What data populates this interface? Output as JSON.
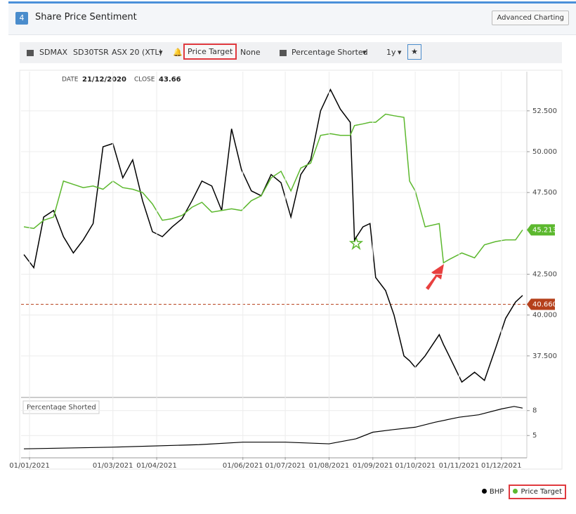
{
  "header": {
    "badge": "4",
    "title": "Share Price Sentiment",
    "button": "Advanced Charting"
  },
  "toolbar": {
    "items": [
      "SDMAX",
      "SD30TSR",
      "ASX 20 (XTL)",
      "Price Target",
      "None",
      "Percentage Shorted",
      "1y"
    ]
  },
  "chart_data": [
    {
      "type": "line",
      "info": {
        "date_label": "DATE",
        "date": "21/12/2020",
        "close_label": "CLOSE",
        "close": 43.66
      },
      "x": [
        "28/12/2020",
        "04/01/2021",
        "11/01/2021",
        "18/01/2021",
        "25/01/2021",
        "01/02/2021",
        "08/02/2021",
        "15/02/2021",
        "22/02/2021",
        "01/03/2021",
        "08/03/2021",
        "15/03/2021",
        "22/03/2021",
        "29/03/2021",
        "05/04/2021",
        "12/04/2021",
        "19/04/2021",
        "26/04/2021",
        "03/05/2021",
        "10/05/2021",
        "17/05/2021",
        "24/05/2021",
        "31/05/2021",
        "07/06/2021",
        "14/06/2021",
        "21/06/2021",
        "28/06/2021",
        "05/07/2021",
        "12/07/2021",
        "19/07/2021",
        "26/07/2021",
        "02/08/2021",
        "09/08/2021",
        "16/08/2021",
        "19/08/2021",
        "25/08/2021",
        "30/08/2021",
        "03/09/2021",
        "10/09/2021",
        "16/09/2021",
        "23/09/2021",
        "27/09/2021",
        "01/10/2021",
        "08/10/2021",
        "18/10/2021",
        "21/10/2021",
        "25/10/2021",
        "03/11/2021",
        "12/11/2021",
        "19/11/2021",
        "27/11/2021",
        "04/12/2021",
        "11/12/2021",
        "16/12/2021"
      ],
      "series": [
        {
          "name": "BHP",
          "color": "#000000",
          "values": [
            43.7,
            42.9,
            46.0,
            46.4,
            44.8,
            43.8,
            44.6,
            45.6,
            50.3,
            50.5,
            48.4,
            49.5,
            47.0,
            45.1,
            44.8,
            45.4,
            45.9,
            47.0,
            48.2,
            47.9,
            46.4,
            51.4,
            48.9,
            47.6,
            47.3,
            48.6,
            48.1,
            46.0,
            48.6,
            49.5,
            52.5,
            53.8,
            52.6,
            51.8,
            44.6,
            45.4,
            45.6,
            42.3,
            41.5,
            40.0,
            37.5,
            37.2,
            36.8,
            37.5,
            38.8,
            38.2,
            37.5,
            35.9,
            36.5,
            36.0,
            38.0,
            39.8,
            40.8,
            41.2
          ]
        },
        {
          "name": "Price Target",
          "color": "#5cb82e",
          "values": [
            45.4,
            45.3,
            45.8,
            46.0,
            48.2,
            48.0,
            47.8,
            47.9,
            47.7,
            48.2,
            47.8,
            47.7,
            47.5,
            46.8,
            45.8,
            45.9,
            46.1,
            46.6,
            46.9,
            46.3,
            46.4,
            46.5,
            46.4,
            47.0,
            47.3,
            48.4,
            48.8,
            47.6,
            49.0,
            49.3,
            51.0,
            51.1,
            51.0,
            51.0,
            51.6,
            51.7,
            51.8,
            51.8,
            52.3,
            52.2,
            52.1,
            48.2,
            47.6,
            45.4,
            45.6,
            43.2,
            43.4,
            43.8,
            43.5,
            44.3,
            44.5,
            44.6,
            44.6,
            45.213
          ]
        }
      ],
      "xlim": [
        "26/12/2020",
        "19/12/2021"
      ],
      "ylim": [
        35,
        54.9
      ],
      "yticks": [
        {
          "value": 37.5,
          "label": "37.500"
        },
        {
          "value": 40,
          "label": "40.000"
        },
        {
          "value": 42.5,
          "label": "42.500"
        },
        {
          "value": 47.5,
          "label": "47.500"
        },
        {
          "value": 50,
          "label": "50.000"
        },
        {
          "value": 52.5,
          "label": "52.500"
        }
      ],
      "reference_line": {
        "value": 40.66,
        "label": "40.660",
        "color": "#b5401b"
      },
      "grid": true
    },
    {
      "type": "line",
      "title": "Percentage Shorted",
      "x": [
        "28/12/2020",
        "01/03/2021",
        "01/05/2021",
        "01/06/2021",
        "01/07/2021",
        "01/08/2021",
        "20/08/2021",
        "01/09/2021",
        "15/09/2021",
        "01/10/2021",
        "15/10/2021",
        "01/11/2021",
        "15/11/2021",
        "01/12/2021",
        "10/12/2021",
        "16/12/2021"
      ],
      "series": [
        {
          "color": "#000000",
          "values": [
            3.4,
            3.6,
            3.9,
            4.2,
            4.2,
            4.0,
            4.6,
            5.4,
            5.7,
            6.0,
            6.6,
            7.2,
            7.5,
            8.2,
            8.5,
            8.3
          ]
        }
      ],
      "xlim": [
        "26/12/2020",
        "19/12/2021"
      ],
      "ylim": [
        2.4,
        9.5
      ],
      "yticks": [
        5,
        8
      ],
      "xticks": [
        "01/01/2021",
        "01/03/2021",
        "01/04/2021",
        "01/06/2021",
        "01/07/2021",
        "01/08/2021",
        "01/09/2021",
        "01/10/2021",
        "01/11/2021",
        "01/12/2021"
      ],
      "grid": true
    }
  ]
}
